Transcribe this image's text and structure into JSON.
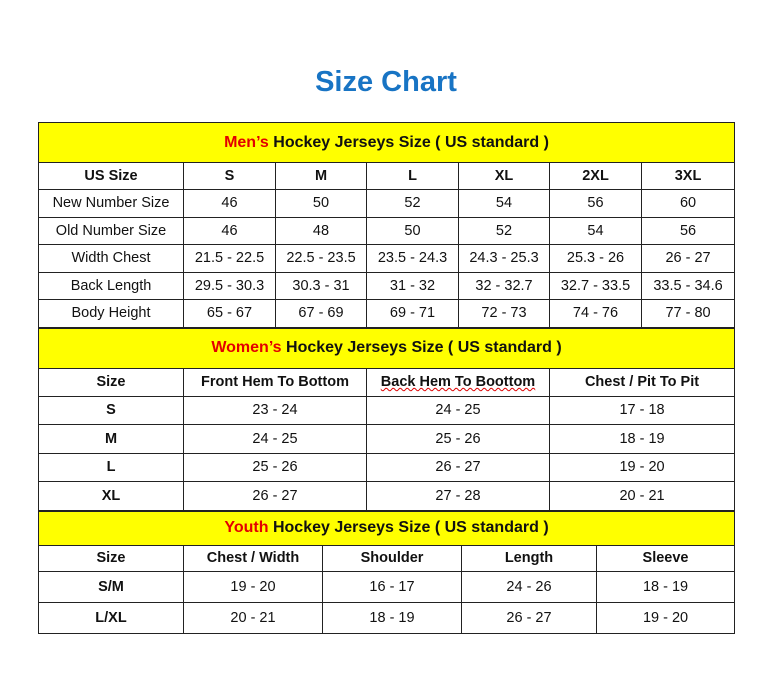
{
  "title": "Size Chart",
  "colors": {
    "title": "#1874c4",
    "section_bg": "#ffff00",
    "accent": "#e30000"
  },
  "men": {
    "heading_accent": "Men’s",
    "heading_rest": " Hockey Jerseys Size ( US standard )",
    "columns": [
      "US Size",
      "S",
      "M",
      "L",
      "XL",
      "2XL",
      "3XL"
    ],
    "rows": [
      [
        "New Number Size",
        "46",
        "50",
        "52",
        "54",
        "56",
        "60"
      ],
      [
        "Old Number Size",
        "46",
        "48",
        "50",
        "52",
        "54",
        "56"
      ],
      [
        "Width Chest",
        "21.5 - 22.5",
        "22.5 - 23.5",
        "23.5 - 24.3",
        "24.3 - 25.3",
        "25.3 - 26",
        "26 - 27"
      ],
      [
        "Back Length",
        "29.5 - 30.3",
        "30.3 - 31",
        "31 - 32",
        "32 - 32.7",
        "32.7 - 33.5",
        "33.5 - 34.6"
      ],
      [
        "Body Height",
        "65 - 67",
        "67 - 69",
        "69 - 71",
        "72 - 73",
        "74 - 76",
        "77 - 80"
      ]
    ]
  },
  "women": {
    "heading_accent": "Women’s",
    "heading_rest": " Hockey Jerseys Size ( US standard )",
    "columns": [
      "Size",
      "Front Hem To Bottom",
      "Back Hem To Boottom",
      "Chest / Pit To Pit"
    ],
    "rows": [
      [
        "S",
        "23 - 24",
        "24 - 25",
        "17 - 18"
      ],
      [
        "M",
        "24 - 25",
        "25 - 26",
        "18 - 19"
      ],
      [
        "L",
        "25 - 26",
        "26 - 27",
        "19 - 20"
      ],
      [
        "XL",
        "26 - 27",
        "27 - 28",
        "20 - 21"
      ]
    ]
  },
  "youth": {
    "heading_accent": "Youth",
    "heading_rest": " Hockey Jerseys Size ( US standard )",
    "columns": [
      "Size",
      "Chest / Width",
      "Shoulder",
      "Length",
      "Sleeve"
    ],
    "rows": [
      [
        "S/M",
        "19 - 20",
        "16 - 17",
        "24 - 26",
        "18 - 19"
      ],
      [
        "L/XL",
        "20 - 21",
        "18 - 19",
        "26 - 27",
        "19 - 20"
      ]
    ]
  }
}
